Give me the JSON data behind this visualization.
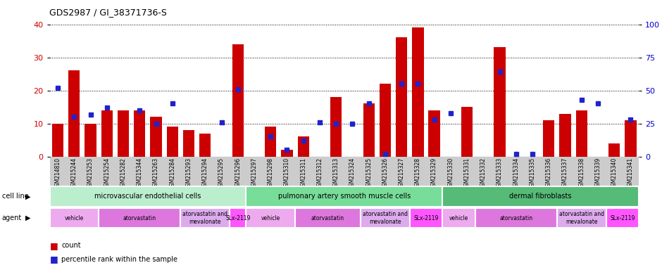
{
  "title": "GDS2987 / GI_38371736-S",
  "samples": [
    "GSM214810",
    "GSM215244",
    "GSM215253",
    "GSM215254",
    "GSM215282",
    "GSM215344",
    "GSM215263",
    "GSM215284",
    "GSM215293",
    "GSM215294",
    "GSM215295",
    "GSM215296",
    "GSM215297",
    "GSM215298",
    "GSM215310",
    "GSM215311",
    "GSM215312",
    "GSM215313",
    "GSM215324",
    "GSM215325",
    "GSM215326",
    "GSM215327",
    "GSM215328",
    "GSM215329",
    "GSM215330",
    "GSM215331",
    "GSM215332",
    "GSM215333",
    "GSM215334",
    "GSM215335",
    "GSM215336",
    "GSM215337",
    "GSM215338",
    "GSM215339",
    "GSM215340",
    "GSM215341"
  ],
  "count_values": [
    10,
    26,
    10,
    14,
    14,
    14,
    12,
    9,
    8,
    7,
    0,
    34,
    0,
    9,
    2,
    6,
    0,
    18,
    0,
    16,
    22,
    36,
    39,
    14,
    0,
    15,
    0,
    33,
    0,
    0,
    11,
    13,
    14,
    0,
    4,
    11
  ],
  "percentile_values": [
    52,
    30,
    32,
    37,
    0,
    35,
    25,
    40,
    0,
    0,
    26,
    51,
    0,
    15,
    5,
    12,
    26,
    25,
    25,
    40,
    2,
    55,
    55,
    28,
    33,
    0,
    0,
    64,
    2,
    2,
    0,
    0,
    43,
    40,
    0,
    28
  ],
  "ylim_left": [
    0,
    40
  ],
  "ylim_right": [
    0,
    100
  ],
  "yticks_left": [
    0,
    10,
    20,
    30,
    40
  ],
  "yticks_right": [
    0,
    25,
    50,
    75,
    100
  ],
  "bar_color_red": "#cc0000",
  "bar_color_blue": "#2222cc",
  "cell_lines": [
    {
      "label": "microvascular endothelial cells",
      "start": 0,
      "end": 11
    },
    {
      "label": "pulmonary artery smooth muscle cells",
      "start": 12,
      "end": 23
    },
    {
      "label": "dermal fibroblasts",
      "start": 24,
      "end": 35
    }
  ],
  "cell_line_colors": [
    "#bbeecc",
    "#77dd99",
    "#55bb77"
  ],
  "agents": [
    {
      "label": "vehicle",
      "start": 0,
      "end": 2
    },
    {
      "label": "atorvastatin",
      "start": 3,
      "end": 7
    },
    {
      "label": "atorvastatin and\nmevalonate",
      "start": 8,
      "end": 10
    },
    {
      "label": "SLx-2119",
      "start": 11,
      "end": 11
    },
    {
      "label": "vehicle",
      "start": 12,
      "end": 14
    },
    {
      "label": "atorvastatin",
      "start": 15,
      "end": 18
    },
    {
      "label": "atorvastatin and\nmevalonate",
      "start": 19,
      "end": 21
    },
    {
      "label": "SLx-2119",
      "start": 22,
      "end": 23
    },
    {
      "label": "vehicle",
      "start": 24,
      "end": 25
    },
    {
      "label": "atorvastatin",
      "start": 26,
      "end": 30
    },
    {
      "label": "atorvastatin and\nmevalonate",
      "start": 31,
      "end": 33
    },
    {
      "label": "SLx-2119",
      "start": 34,
      "end": 35
    }
  ],
  "agent_colors": [
    "#eeaaee",
    "#dd77dd",
    "#ddaaee",
    "#ff55ff"
  ],
  "agent_color_idx": [
    0,
    1,
    2,
    3,
    0,
    1,
    2,
    3,
    0,
    1,
    2,
    3
  ],
  "bg_color": "#ffffff",
  "tick_label_color_left": "#cc0000",
  "tick_label_color_right": "#0000cc",
  "xtick_bg": "#cccccc"
}
